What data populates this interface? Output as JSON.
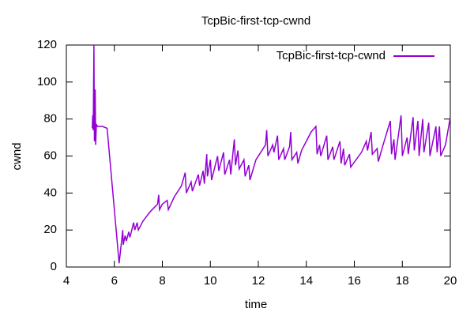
{
  "chart_data": {
    "type": "line",
    "title": "TcpBic-first-tcp-cwnd",
    "xlabel": "time",
    "ylabel": "cwnd",
    "x": [
      5.08,
      5.1,
      5.12,
      5.15,
      5.17,
      5.2,
      5.22,
      5.25,
      5.3,
      5.5,
      5.7,
      6.2,
      6.35,
      6.37,
      6.45,
      6.5,
      6.6,
      6.65,
      6.8,
      6.85,
      6.95,
      7.0,
      7.2,
      7.5,
      7.8,
      7.85,
      7.88,
      8.0,
      8.2,
      8.25,
      8.5,
      8.8,
      8.95,
      9.0,
      9.2,
      9.25,
      9.5,
      9.55,
      9.7,
      9.75,
      9.85,
      9.88,
      10.0,
      10.05,
      10.3,
      10.35,
      10.55,
      10.6,
      10.8,
      10.85,
      11.0,
      11.05,
      11.15,
      11.2,
      11.4,
      11.45,
      11.6,
      11.65,
      11.9,
      12.3,
      12.35,
      12.4,
      12.6,
      12.65,
      12.8,
      12.85,
      13.05,
      13.1,
      13.3,
      13.35,
      13.4,
      13.6,
      13.65,
      13.8,
      14.2,
      14.4,
      14.45,
      14.55,
      14.6,
      14.85,
      14.9,
      15.1,
      15.15,
      15.4,
      15.45,
      15.55,
      15.6,
      15.8,
      15.85,
      16.3,
      16.5,
      16.55,
      16.7,
      16.75,
      16.95,
      17.0,
      17.2,
      17.5,
      17.55,
      17.65,
      17.7,
      17.95,
      18.0,
      18.2,
      18.25,
      18.45,
      18.5,
      18.65,
      18.7,
      18.85,
      18.9,
      19.1,
      19.15,
      19.4,
      19.45,
      19.55,
      19.6,
      19.8,
      20.0
    ],
    "series": [
      {
        "name": "TcpBic-first-tcp-cwnd",
        "color": "#9400d3",
        "values": [
          75,
          82,
          74,
          120,
          68,
          96,
          66,
          77,
          76,
          76,
          75,
          2,
          20,
          12,
          17,
          14,
          19,
          16,
          24,
          20,
          24,
          20,
          25,
          30,
          34,
          39,
          31,
          34,
          36,
          31,
          38,
          44,
          51,
          40,
          46,
          41,
          50,
          44,
          52,
          45,
          61,
          49,
          58,
          47,
          60,
          52,
          62,
          50,
          58,
          50,
          69,
          55,
          63,
          53,
          58,
          49,
          55,
          47,
          58,
          66,
          74,
          60,
          66,
          62,
          71,
          58,
          64,
          58,
          65,
          73,
          58,
          62,
          56,
          63,
          73,
          76,
          61,
          66,
          60,
          71,
          58,
          65,
          58,
          68,
          56,
          64,
          55,
          61,
          54,
          62,
          68,
          63,
          73,
          61,
          64,
          57,
          66,
          79,
          61,
          69,
          58,
          82,
          60,
          70,
          61,
          81,
          63,
          79,
          60,
          80,
          62,
          78,
          60,
          76,
          62,
          76,
          60,
          66,
          81
        ]
      }
    ],
    "xlim": [
      4,
      20
    ],
    "xticks": [
      4,
      6,
      8,
      10,
      12,
      14,
      16,
      18,
      20
    ],
    "ylim": [
      0,
      120
    ],
    "yticks": [
      0,
      20,
      40,
      60,
      80,
      100,
      120
    ],
    "legend": "top-right"
  }
}
